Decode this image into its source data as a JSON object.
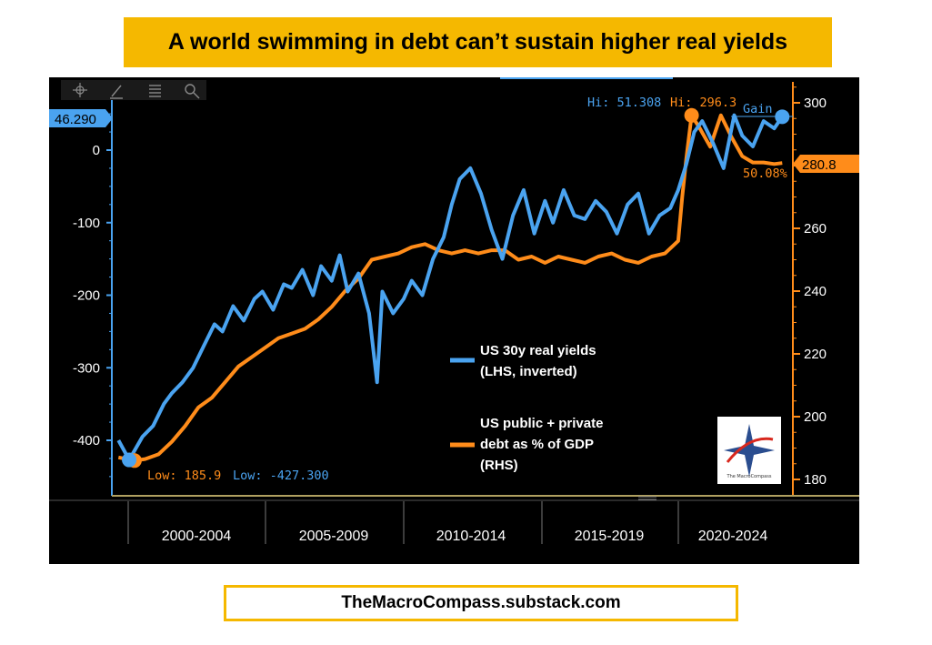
{
  "title": "A world swimming in debt can’t sustain higher real yields",
  "footer": "TheMacroCompass.substack.com",
  "toolbar": {
    "icons": [
      "crosshair-icon",
      "pencil-icon",
      "list-icon",
      "zoom-icon"
    ]
  },
  "colors": {
    "blue": "#4aa3f0",
    "orange": "#ff8c1a",
    "background": "#000000",
    "accent": "#f5b800"
  },
  "logo": {
    "text": "The MacroCompass"
  },
  "chart_data": {
    "type": "line",
    "x_categories": [
      "2000-2004",
      "2005-2009",
      "2010-2014",
      "2015-2019",
      "2020-2024"
    ],
    "left_axis": {
      "ticks": [
        "0",
        "-100",
        "-200",
        "-300",
        "-400"
      ],
      "tick_values": [
        0,
        -100,
        -200,
        -300,
        -400
      ],
      "inverted": true
    },
    "right_axis": {
      "ticks": [
        "300",
        "280",
        "260",
        "240",
        "220",
        "200",
        "180"
      ],
      "tick_values": [
        300,
        280,
        260,
        240,
        220,
        200,
        180
      ]
    },
    "annotations": {
      "left_current": "46.290",
      "right_current": "280.8",
      "hi_blue": "Hi: 51.308",
      "hi_orange": "Hi: 296.3",
      "low_orange": "Low: 185.9",
      "low_blue": "Low: -427.300",
      "gain_label": "Gain",
      "gain_value": "50.08%"
    },
    "legend": [
      {
        "name": "US 30y real yields (LHS, inverted)",
        "color": "#4aa3f0"
      },
      {
        "name": "US public + private debt as % of GDP (RHS)",
        "color": "#ff8c1a"
      }
    ],
    "series": [
      {
        "name": "US 30y real yields (LHS, inverted)",
        "axis": "left",
        "x": [
          1999.0,
          1999.4,
          1999.9,
          2000.3,
          2000.7,
          2001.0,
          2001.4,
          2001.8,
          2002.2,
          2002.6,
          2002.9,
          2003.3,
          2003.7,
          2004.1,
          2004.4,
          2004.8,
          2005.2,
          2005.5,
          2005.9,
          2006.3,
          2006.6,
          2007.0,
          2007.3,
          2007.6,
          2008.0,
          2008.4,
          2008.7,
          2008.9,
          2009.3,
          2009.7,
          2010.0,
          2010.4,
          2010.8,
          2011.2,
          2011.5,
          2011.8,
          2012.2,
          2012.6,
          2013.0,
          2013.4,
          2013.8,
          2014.2,
          2014.6,
          2015.0,
          2015.3,
          2015.7,
          2016.1,
          2016.5,
          2016.9,
          2017.3,
          2017.7,
          2018.1,
          2018.5,
          2018.9,
          2019.3,
          2019.7,
          2020.0,
          2020.3,
          2020.6,
          2020.9,
          2021.3,
          2021.7,
          2022.1,
          2022.4,
          2022.8,
          2023.2,
          2023.6,
          2023.9
        ],
        "values": [
          -400,
          -427,
          -395,
          -380,
          -350,
          -335,
          -320,
          -300,
          -270,
          -240,
          -250,
          -215,
          -235,
          -205,
          -195,
          -220,
          -185,
          -190,
          -165,
          -200,
          -160,
          -180,
          -145,
          -195,
          -170,
          -225,
          -320,
          -195,
          -225,
          -205,
          -180,
          -200,
          -150,
          -120,
          -75,
          -40,
          -25,
          -60,
          -110,
          -150,
          -90,
          -55,
          -115,
          -70,
          -100,
          -55,
          -90,
          -95,
          -70,
          -85,
          -115,
          -75,
          -60,
          -115,
          -90,
          -80,
          -55,
          -20,
          25,
          40,
          10,
          -25,
          48,
          20,
          5,
          40,
          30,
          46
        ]
      },
      {
        "name": "US public + private debt as % of GDP (RHS)",
        "axis": "right",
        "x": [
          1999.0,
          1999.6,
          2000.0,
          2000.5,
          2001.0,
          2001.5,
          2002.0,
          2002.5,
          2003.0,
          2003.5,
          2004.0,
          2004.5,
          2005.0,
          2005.5,
          2006.0,
          2006.5,
          2007.0,
          2007.5,
          2008.0,
          2008.5,
          2009.0,
          2009.5,
          2010.0,
          2010.5,
          2011.0,
          2011.5,
          2012.0,
          2012.5,
          2013.0,
          2013.5,
          2014.0,
          2014.5,
          2015.0,
          2015.5,
          2016.0,
          2016.5,
          2017.0,
          2017.5,
          2018.0,
          2018.5,
          2019.0,
          2019.5,
          2020.0,
          2020.15,
          2020.3,
          2020.5,
          2020.8,
          2021.2,
          2021.6,
          2022.0,
          2022.4,
          2022.8,
          2023.2,
          2023.6,
          2023.9
        ],
        "values": [
          187,
          186,
          186.5,
          188,
          192,
          197,
          203,
          206,
          211,
          216,
          219,
          222,
          225,
          226.5,
          228,
          231,
          235,
          240,
          244,
          250,
          251,
          252,
          254,
          255,
          253,
          252,
          253,
          252,
          253,
          253,
          250,
          251,
          249,
          251,
          250,
          249,
          251,
          252,
          250,
          249,
          251,
          252,
          256,
          270,
          282,
          296,
          292,
          286,
          296,
          289,
          283,
          281,
          281,
          280.5,
          280.8
        ]
      }
    ]
  }
}
